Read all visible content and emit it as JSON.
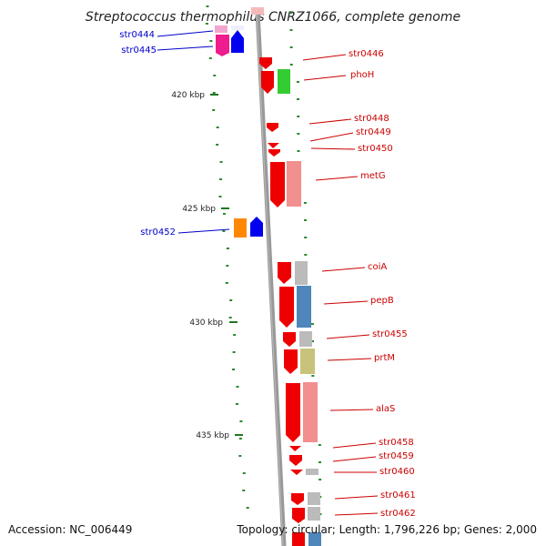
{
  "title": "Streptococcus thermophilus CNRZ1066, complete genome",
  "footer": {
    "accession": "Accession: NC_006449",
    "summary": "Topology: circular; Length: 1,796,226 bp; Genes: 2,000"
  },
  "ticks": [
    {
      "label": "420 kbp"
    },
    {
      "label": "425 kbp"
    },
    {
      "label": "430 kbp"
    },
    {
      "label": "435 kbp"
    }
  ],
  "genes_left": [
    {
      "label": "str0444",
      "color": "#0000cc"
    },
    {
      "label": "str0445",
      "color": "#0000cc"
    },
    {
      "label": "str0452",
      "color": "#0000cc"
    }
  ],
  "genes_right": [
    {
      "label": "str0446",
      "color": "#cc0000"
    },
    {
      "label": "phoH",
      "color": "#cc0000"
    },
    {
      "label": "str0448",
      "color": "#cc0000"
    },
    {
      "label": "str0449",
      "color": "#cc0000"
    },
    {
      "label": "str0450",
      "color": "#cc0000"
    },
    {
      "label": "metG",
      "color": "#cc0000"
    },
    {
      "label": "coiA",
      "color": "#cc0000"
    },
    {
      "label": "pepB",
      "color": "#cc0000"
    },
    {
      "label": "str0455",
      "color": "#cc0000"
    },
    {
      "label": "prtM",
      "color": "#cc0000"
    },
    {
      "label": "alaS",
      "color": "#cc0000"
    },
    {
      "label": "str0458",
      "color": "#cc0000"
    },
    {
      "label": "str0459",
      "color": "#cc0000"
    },
    {
      "label": "str0460",
      "color": "#cc0000"
    },
    {
      "label": "str0461",
      "color": "#cc0000"
    },
    {
      "label": "str0462",
      "color": "#cc0000"
    }
  ]
}
